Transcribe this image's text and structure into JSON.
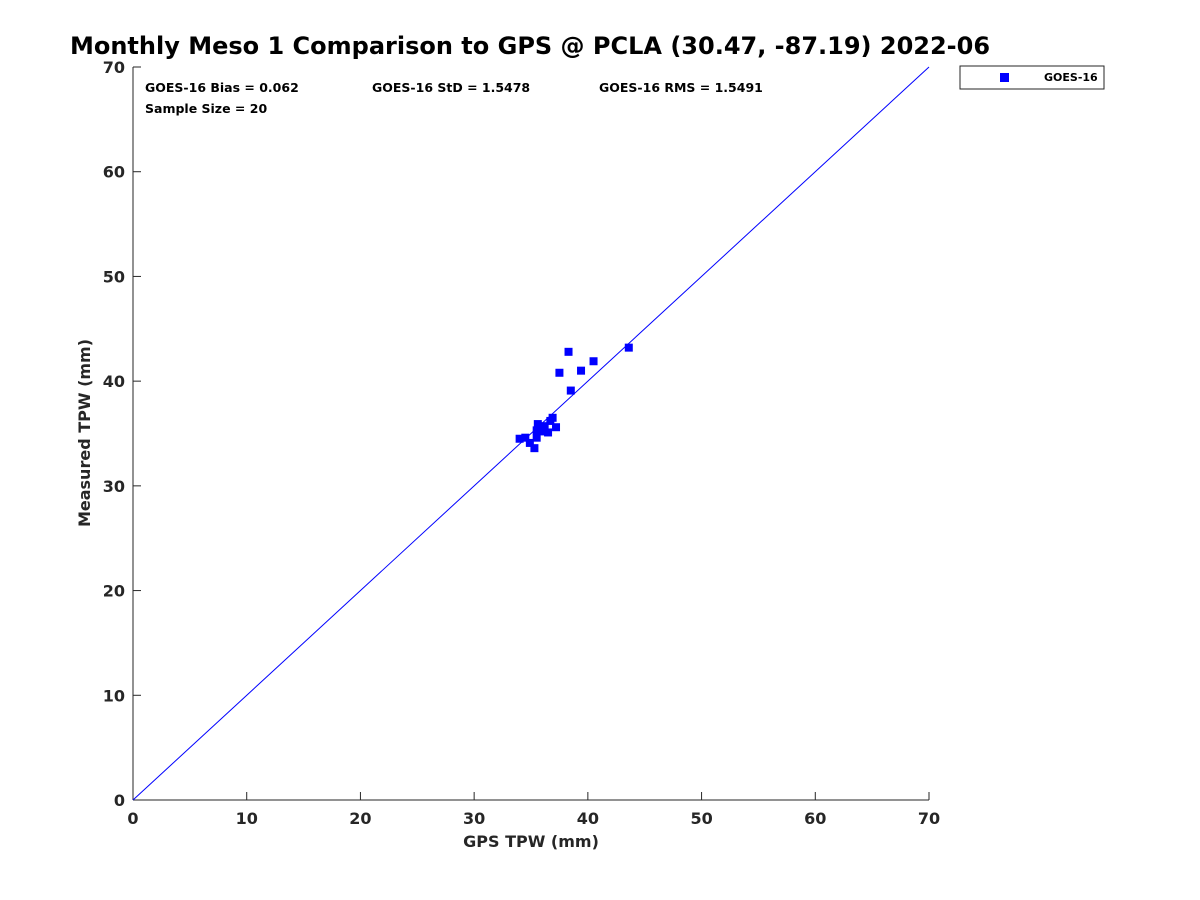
{
  "chart_data": {
    "type": "scatter",
    "title": "Monthly Meso 1 Comparison to GPS @ PCLA (30.47, -87.19) 2022-06",
    "xlabel": "GPS TPW (mm)",
    "ylabel": "Measured TPW (mm)",
    "xlim": [
      0,
      70
    ],
    "ylim": [
      0,
      70
    ],
    "xticks": [
      0,
      10,
      20,
      30,
      40,
      50,
      60,
      70
    ],
    "yticks": [
      0,
      10,
      20,
      30,
      40,
      50,
      60,
      70
    ],
    "grid": false,
    "legend_position": "outside-top-right",
    "reference_line": {
      "name": "1:1 line",
      "x": [
        0,
        70
      ],
      "y": [
        0,
        70
      ],
      "color": "#0000ff"
    },
    "annotations": {
      "bias": "GOES-16 Bias = 0.062",
      "std": "GOES-16 StD = 1.5478",
      "rms": "GOES-16 RMS = 1.5491",
      "sample_size": "Sample Size = 20"
    },
    "series": [
      {
        "name": "GOES-16",
        "color": "#0000ff",
        "marker": "square",
        "x": [
          34.0,
          34.5,
          34.9,
          35.3,
          35.5,
          35.5,
          35.6,
          35.9,
          36.2,
          36.5,
          36.7,
          36.9,
          37.2,
          37.5,
          38.3,
          38.5,
          39.4,
          40.5,
          43.6,
          36.1
        ],
        "y": [
          34.5,
          34.6,
          34.1,
          33.6,
          34.6,
          35.3,
          35.9,
          35.2,
          35.6,
          35.1,
          36.2,
          36.5,
          35.6,
          40.8,
          42.8,
          39.1,
          41.0,
          41.9,
          43.2,
          35.7
        ]
      }
    ]
  }
}
